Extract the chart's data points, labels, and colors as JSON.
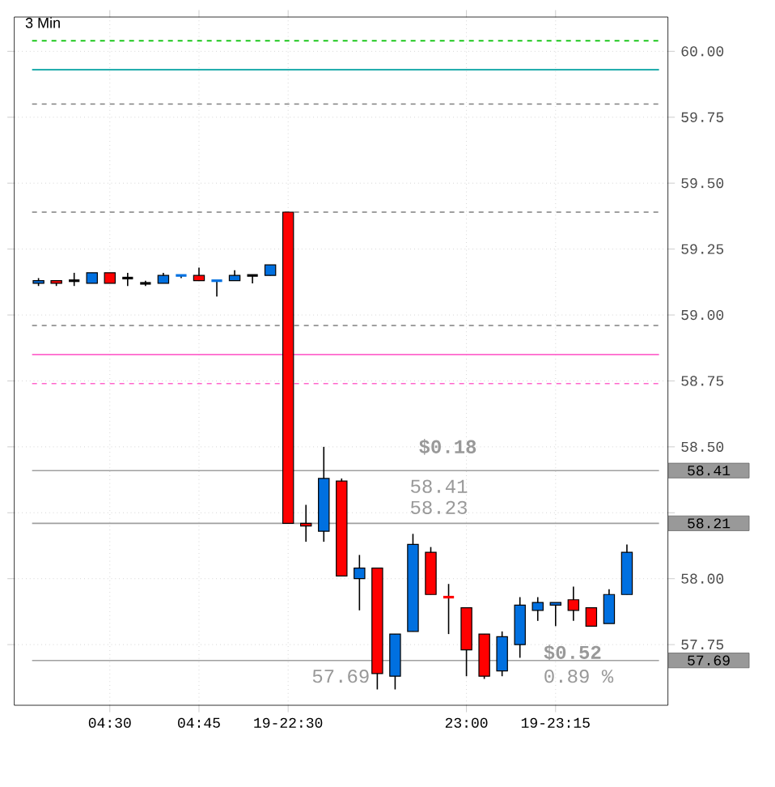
{
  "chart_data": {
    "type": "candlestick",
    "title": "3 Min",
    "categories": [
      null,
      null,
      null,
      null,
      "04:30",
      null,
      null,
      null,
      null,
      "04:45",
      null,
      null,
      null,
      null,
      "19-22:30",
      null,
      null,
      null,
      null,
      null,
      null,
      null,
      null,
      null,
      "23:00",
      null,
      null,
      null,
      null,
      "19-23:15",
      null,
      null,
      null,
      null
    ],
    "ohlc": [
      [
        59.12,
        59.14,
        59.11,
        59.13
      ],
      [
        59.13,
        59.13,
        59.11,
        59.12
      ],
      [
        59.13,
        59.16,
        59.11,
        59.13
      ],
      [
        59.12,
        59.16,
        59.12,
        59.16
      ],
      [
        59.16,
        59.16,
        59.12,
        59.12
      ],
      [
        59.14,
        59.16,
        59.11,
        59.14
      ],
      [
        59.12,
        59.13,
        59.11,
        59.12
      ],
      [
        59.12,
        59.16,
        59.12,
        59.15
      ],
      [
        59.15,
        59.15,
        59.14,
        59.15
      ],
      [
        59.15,
        59.18,
        59.13,
        59.13
      ],
      [
        59.13,
        59.13,
        59.07,
        59.13
      ],
      [
        59.13,
        59.17,
        59.13,
        59.15
      ],
      [
        59.15,
        59.15,
        59.12,
        59.15
      ],
      [
        59.15,
        59.19,
        59.15,
        59.19
      ],
      [
        59.39,
        59.39,
        58.21,
        58.21
      ],
      [
        58.21,
        58.28,
        58.14,
        58.2
      ],
      [
        58.18,
        58.5,
        58.14,
        58.38
      ],
      [
        58.37,
        58.38,
        58.01,
        58.01
      ],
      [
        58.0,
        58.09,
        57.88,
        58.04
      ],
      [
        58.04,
        58.04,
        57.58,
        57.64
      ],
      [
        57.63,
        57.79,
        57.58,
        57.79
      ],
      [
        57.8,
        58.17,
        57.8,
        58.13
      ],
      [
        58.1,
        58.12,
        57.94,
        57.94
      ],
      [
        57.93,
        57.98,
        57.79,
        57.93
      ],
      [
        57.89,
        57.89,
        57.63,
        57.73
      ],
      [
        57.79,
        57.79,
        57.62,
        57.63
      ],
      [
        57.65,
        57.8,
        57.63,
        57.78
      ],
      [
        57.75,
        57.93,
        57.7,
        57.9
      ],
      [
        57.88,
        57.93,
        57.84,
        57.91
      ],
      [
        57.9,
        57.91,
        57.82,
        57.91
      ],
      [
        57.92,
        57.97,
        57.84,
        57.88
      ],
      [
        57.89,
        57.89,
        57.82,
        57.82
      ],
      [
        57.83,
        57.96,
        57.83,
        57.94
      ],
      [
        57.94,
        58.13,
        57.94,
        58.1
      ]
    ],
    "colors": [
      "#0070e0",
      "#ff0000",
      "#000000",
      "#0070e0",
      "#ff0000",
      "#000000",
      "#000000",
      "#0070e0",
      "#0070e0",
      "#ff0000",
      "#0070e0",
      "#0070e0",
      "#000000",
      "#0070e0",
      "#ff0000",
      "#ff0000",
      "#0070e0",
      "#ff0000",
      "#0070e0",
      "#ff0000",
      "#0070e0",
      "#0070e0",
      "#ff0000",
      "#ff0000",
      "#ff0000",
      "#ff0000",
      "#0070e0",
      "#0070e0",
      "#0070e0",
      "#0070e0",
      "#ff0000",
      "#ff0000",
      "#0070e0",
      "#0070e0"
    ],
    "ylim": [
      57.52,
      60.13
    ],
    "yticks": [
      {
        "value": 57.75,
        "label": "57.75"
      },
      {
        "value": 58.0,
        "label": "58.00"
      },
      {
        "value": 58.25,
        "label": null
      },
      {
        "value": 58.5,
        "label": "58.50"
      },
      {
        "value": 58.75,
        "label": "58.75"
      },
      {
        "value": 59.0,
        "label": "59.00"
      },
      {
        "value": 59.25,
        "label": "59.25"
      },
      {
        "value": 59.5,
        "label": "59.50"
      },
      {
        "value": 59.75,
        "label": "59.75"
      },
      {
        "value": 60.0,
        "label": "60.00"
      }
    ],
    "grid": true,
    "ref_lines": [
      {
        "axis": "y",
        "value": 60.04,
        "color": "#00c000",
        "line_style": "dashed"
      },
      {
        "axis": "y",
        "value": 59.93,
        "color": "#00a0a0",
        "line_style": "solid"
      },
      {
        "axis": "y",
        "value": 59.8,
        "color": "#808080",
        "line_style": "dashed"
      },
      {
        "axis": "y",
        "value": 59.39,
        "color": "#808080",
        "line_style": "dashed"
      },
      {
        "axis": "y",
        "value": 58.96,
        "color": "#808080",
        "line_style": "dashed"
      },
      {
        "axis": "y",
        "value": 58.85,
        "color": "#ff66cc",
        "line_style": "solid"
      },
      {
        "axis": "y",
        "value": 58.74,
        "color": "#ff66cc",
        "line_style": "dashed"
      },
      {
        "axis": "y",
        "value": 58.41,
        "label": "58.41",
        "color": "#a0a0a0",
        "line_style": "solid"
      },
      {
        "axis": "y",
        "value": 58.21,
        "label": "58.21",
        "color": "#a0a0a0",
        "line_style": "solid"
      },
      {
        "axis": "y",
        "value": 57.69,
        "label": "57.69",
        "color": "#a0a0a0",
        "line_style": "solid"
      }
    ],
    "annotations": [
      "$0.18",
      "58.41",
      "58.23",
      "$0.52",
      "0.89 %",
      "57.69"
    ]
  }
}
